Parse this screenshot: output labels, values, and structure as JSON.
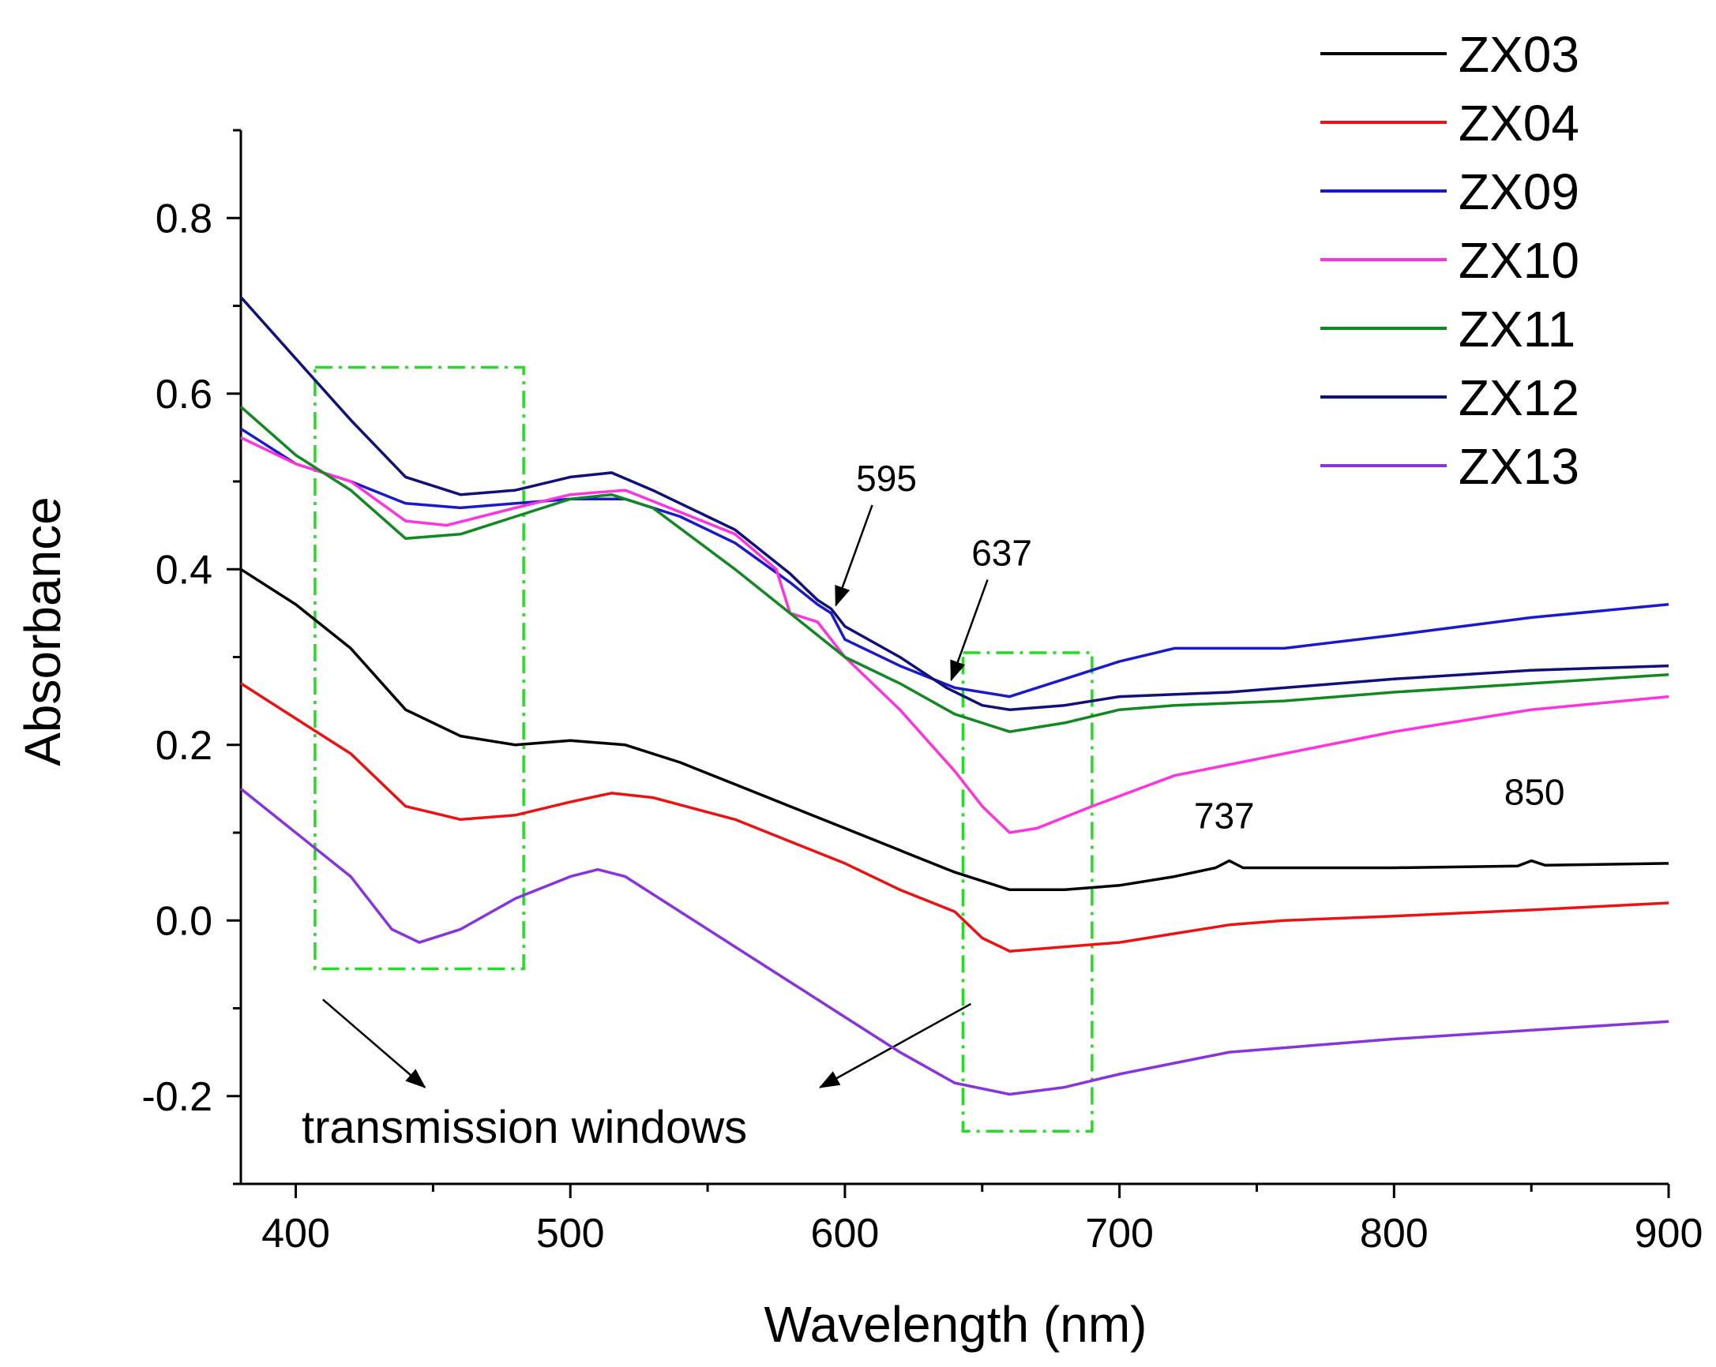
{
  "chart_data": {
    "type": "line",
    "title": "",
    "xlabel": "Wavelength (nm)",
    "ylabel": "Absorbance",
    "xlim": [
      380,
      900
    ],
    "ylim": [
      -0.3,
      0.9
    ],
    "xticks": [
      400,
      500,
      600,
      700,
      800,
      900
    ],
    "yticks": [
      -0.2,
      0.0,
      0.2,
      0.4,
      0.6,
      0.8
    ],
    "xtick_labels": [
      "400",
      "500",
      "600",
      "700",
      "800",
      "900"
    ],
    "ytick_labels": [
      "-0.2",
      "0.0",
      "0.2",
      "0.4",
      "0.6",
      "0.8"
    ],
    "legend_position": "top-right",
    "series": [
      {
        "name": "ZX03",
        "color": "#000000",
        "points": [
          [
            380,
            0.4
          ],
          [
            400,
            0.36
          ],
          [
            420,
            0.31
          ],
          [
            440,
            0.24
          ],
          [
            460,
            0.21
          ],
          [
            480,
            0.2
          ],
          [
            500,
            0.205
          ],
          [
            520,
            0.2
          ],
          [
            540,
            0.18
          ],
          [
            560,
            0.155
          ],
          [
            580,
            0.13
          ],
          [
            600,
            0.105
          ],
          [
            620,
            0.08
          ],
          [
            640,
            0.055
          ],
          [
            660,
            0.035
          ],
          [
            680,
            0.035
          ],
          [
            700,
            0.04
          ],
          [
            720,
            0.05
          ],
          [
            735,
            0.06
          ],
          [
            740,
            0.068
          ],
          [
            745,
            0.06
          ],
          [
            760,
            0.06
          ],
          [
            800,
            0.06
          ],
          [
            845,
            0.062
          ],
          [
            850,
            0.068
          ],
          [
            855,
            0.063
          ],
          [
            900,
            0.065
          ]
        ]
      },
      {
        "name": "ZX04",
        "color": "#ee1111",
        "points": [
          [
            380,
            0.27
          ],
          [
            400,
            0.23
          ],
          [
            420,
            0.19
          ],
          [
            440,
            0.13
          ],
          [
            460,
            0.115
          ],
          [
            480,
            0.12
          ],
          [
            500,
            0.135
          ],
          [
            515,
            0.145
          ],
          [
            530,
            0.14
          ],
          [
            560,
            0.115
          ],
          [
            580,
            0.09
          ],
          [
            600,
            0.065
          ],
          [
            620,
            0.035
          ],
          [
            640,
            0.01
          ],
          [
            650,
            -0.02
          ],
          [
            660,
            -0.035
          ],
          [
            680,
            -0.03
          ],
          [
            700,
            -0.025
          ],
          [
            720,
            -0.015
          ],
          [
            740,
            -0.005
          ],
          [
            760,
            0.0
          ],
          [
            800,
            0.005
          ],
          [
            850,
            0.012
          ],
          [
            900,
            0.02
          ]
        ]
      },
      {
        "name": "ZX09",
        "color": "#1a1acc",
        "points": [
          [
            380,
            0.56
          ],
          [
            400,
            0.52
          ],
          [
            420,
            0.5
          ],
          [
            440,
            0.475
          ],
          [
            460,
            0.47
          ],
          [
            480,
            0.475
          ],
          [
            500,
            0.48
          ],
          [
            520,
            0.48
          ],
          [
            540,
            0.46
          ],
          [
            560,
            0.43
          ],
          [
            580,
            0.385
          ],
          [
            590,
            0.36
          ],
          [
            595,
            0.35
          ],
          [
            600,
            0.32
          ],
          [
            620,
            0.29
          ],
          [
            640,
            0.265
          ],
          [
            660,
            0.255
          ],
          [
            680,
            0.275
          ],
          [
            700,
            0.295
          ],
          [
            720,
            0.31
          ],
          [
            740,
            0.31
          ],
          [
            760,
            0.31
          ],
          [
            800,
            0.325
          ],
          [
            850,
            0.345
          ],
          [
            900,
            0.36
          ]
        ]
      },
      {
        "name": "ZX10",
        "color": "#ff33dd",
        "points": [
          [
            380,
            0.55
          ],
          [
            400,
            0.52
          ],
          [
            420,
            0.5
          ],
          [
            440,
            0.455
          ],
          [
            455,
            0.45
          ],
          [
            480,
            0.47
          ],
          [
            500,
            0.485
          ],
          [
            520,
            0.49
          ],
          [
            540,
            0.465
          ],
          [
            560,
            0.44
          ],
          [
            575,
            0.4
          ],
          [
            580,
            0.35
          ],
          [
            590,
            0.34
          ],
          [
            600,
            0.3
          ],
          [
            620,
            0.24
          ],
          [
            640,
            0.17
          ],
          [
            650,
            0.13
          ],
          [
            660,
            0.1
          ],
          [
            670,
            0.105
          ],
          [
            690,
            0.13
          ],
          [
            720,
            0.165
          ],
          [
            760,
            0.19
          ],
          [
            800,
            0.215
          ],
          [
            850,
            0.24
          ],
          [
            900,
            0.255
          ]
        ]
      },
      {
        "name": "ZX11",
        "color": "#118822",
        "points": [
          [
            380,
            0.585
          ],
          [
            400,
            0.53
          ],
          [
            420,
            0.49
          ],
          [
            440,
            0.435
          ],
          [
            460,
            0.44
          ],
          [
            480,
            0.46
          ],
          [
            500,
            0.48
          ],
          [
            515,
            0.485
          ],
          [
            530,
            0.47
          ],
          [
            560,
            0.4
          ],
          [
            580,
            0.35
          ],
          [
            600,
            0.3
          ],
          [
            620,
            0.27
          ],
          [
            640,
            0.235
          ],
          [
            660,
            0.215
          ],
          [
            680,
            0.225
          ],
          [
            700,
            0.24
          ],
          [
            720,
            0.245
          ],
          [
            760,
            0.25
          ],
          [
            800,
            0.26
          ],
          [
            850,
            0.27
          ],
          [
            900,
            0.28
          ]
        ]
      },
      {
        "name": "ZX12",
        "color": "#10107a",
        "points": [
          [
            380,
            0.71
          ],
          [
            400,
            0.64
          ],
          [
            420,
            0.57
          ],
          [
            440,
            0.505
          ],
          [
            460,
            0.485
          ],
          [
            480,
            0.49
          ],
          [
            500,
            0.505
          ],
          [
            515,
            0.51
          ],
          [
            530,
            0.49
          ],
          [
            560,
            0.445
          ],
          [
            580,
            0.395
          ],
          [
            590,
            0.365
          ],
          [
            595,
            0.355
          ],
          [
            600,
            0.335
          ],
          [
            620,
            0.3
          ],
          [
            637,
            0.265
          ],
          [
            650,
            0.245
          ],
          [
            660,
            0.24
          ],
          [
            680,
            0.245
          ],
          [
            700,
            0.255
          ],
          [
            740,
            0.26
          ],
          [
            800,
            0.275
          ],
          [
            850,
            0.285
          ],
          [
            900,
            0.29
          ]
        ]
      },
      {
        "name": "ZX13",
        "color": "#8833dd",
        "points": [
          [
            380,
            0.15
          ],
          [
            400,
            0.1
          ],
          [
            420,
            0.05
          ],
          [
            435,
            -0.01
          ],
          [
            445,
            -0.025
          ],
          [
            460,
            -0.01
          ],
          [
            480,
            0.025
          ],
          [
            500,
            0.05
          ],
          [
            510,
            0.058
          ],
          [
            520,
            0.05
          ],
          [
            540,
            0.01
          ],
          [
            560,
            -0.03
          ],
          [
            580,
            -0.07
          ],
          [
            600,
            -0.11
          ],
          [
            620,
            -0.15
          ],
          [
            640,
            -0.185
          ],
          [
            660,
            -0.198
          ],
          [
            680,
            -0.19
          ],
          [
            700,
            -0.175
          ],
          [
            740,
            -0.15
          ],
          [
            800,
            -0.135
          ],
          [
            850,
            -0.125
          ],
          [
            900,
            -0.115
          ]
        ]
      }
    ],
    "annotations": [
      {
        "text": "595",
        "x": 595,
        "y": 0.35,
        "arrow": true
      },
      {
        "text": "637",
        "x": 637,
        "y": 0.265,
        "arrow": true
      },
      {
        "text": "737",
        "x": 737,
        "y": 0.068,
        "arrow": false
      },
      {
        "text": "850",
        "x": 850,
        "y": 0.068,
        "arrow": false
      }
    ],
    "transmission_windows": {
      "label": "transmission windows",
      "ranges": [
        {
          "x0": 407,
          "x1": 483,
          "y0": -0.055,
          "y1": 0.63
        },
        {
          "x0": 643,
          "x1": 690,
          "y0": -0.24,
          "y1": 0.305
        }
      ],
      "color": "#22dd22"
    }
  }
}
